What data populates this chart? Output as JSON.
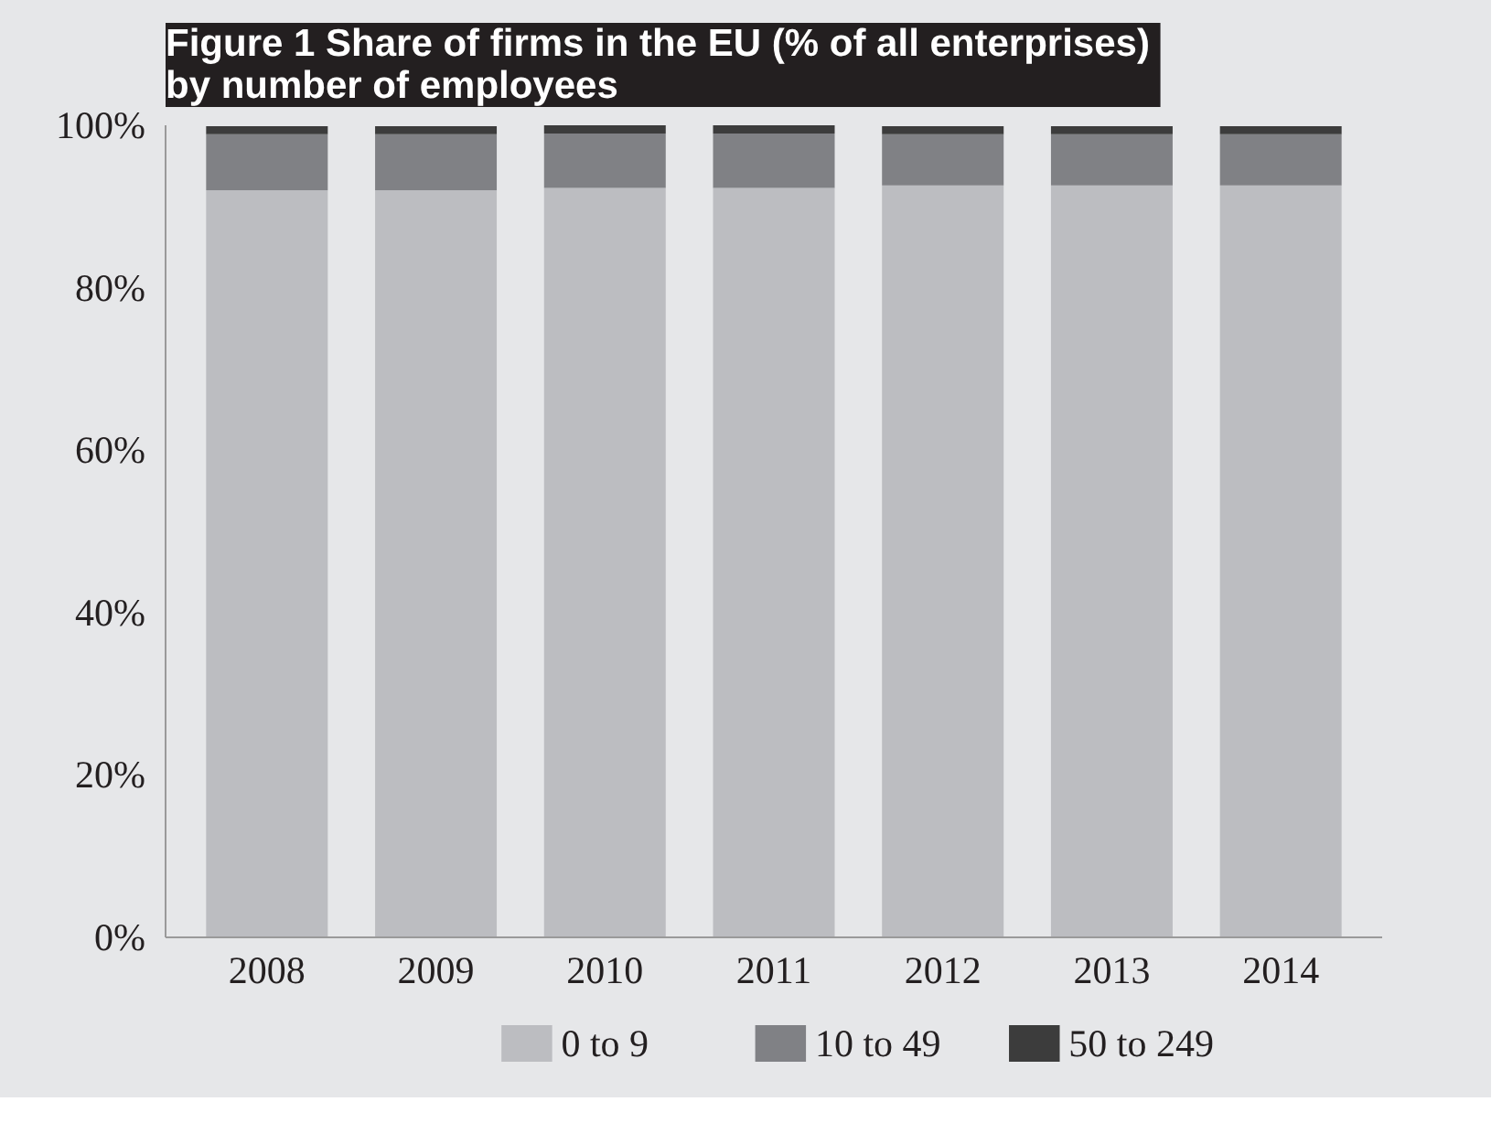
{
  "chart_data": {
    "type": "bar",
    "stacked": true,
    "title": "Figure 1  Share of firms in the EU (% of all enterprises) by number of employees",
    "categories": [
      "2008",
      "2009",
      "2010",
      "2011",
      "2012",
      "2013",
      "2014"
    ],
    "series": [
      {
        "name": "0 to 9",
        "color": "#bcbdc1",
        "values": [
          92.0,
          92.0,
          92.3,
          92.3,
          92.6,
          92.6,
          92.6
        ]
      },
      {
        "name": "10 to 49",
        "color": "#808185",
        "values": [
          6.9,
          6.9,
          6.7,
          6.7,
          6.3,
          6.3,
          6.3
        ]
      },
      {
        "name": "50 to 249",
        "color": "#3c3c3c",
        "values": [
          1.0,
          1.0,
          1.0,
          1.0,
          1.0,
          1.0,
          1.0
        ]
      }
    ],
    "ylim": [
      0,
      100
    ],
    "yticks": [
      {
        "value": 0,
        "label": "0%"
      },
      {
        "value": 20,
        "label": "20%"
      },
      {
        "value": 40,
        "label": "40%"
      },
      {
        "value": 60,
        "label": "60%"
      },
      {
        "value": 80,
        "label": "80%"
      },
      {
        "value": 100,
        "label": "100%"
      }
    ],
    "legend": "bottom"
  }
}
